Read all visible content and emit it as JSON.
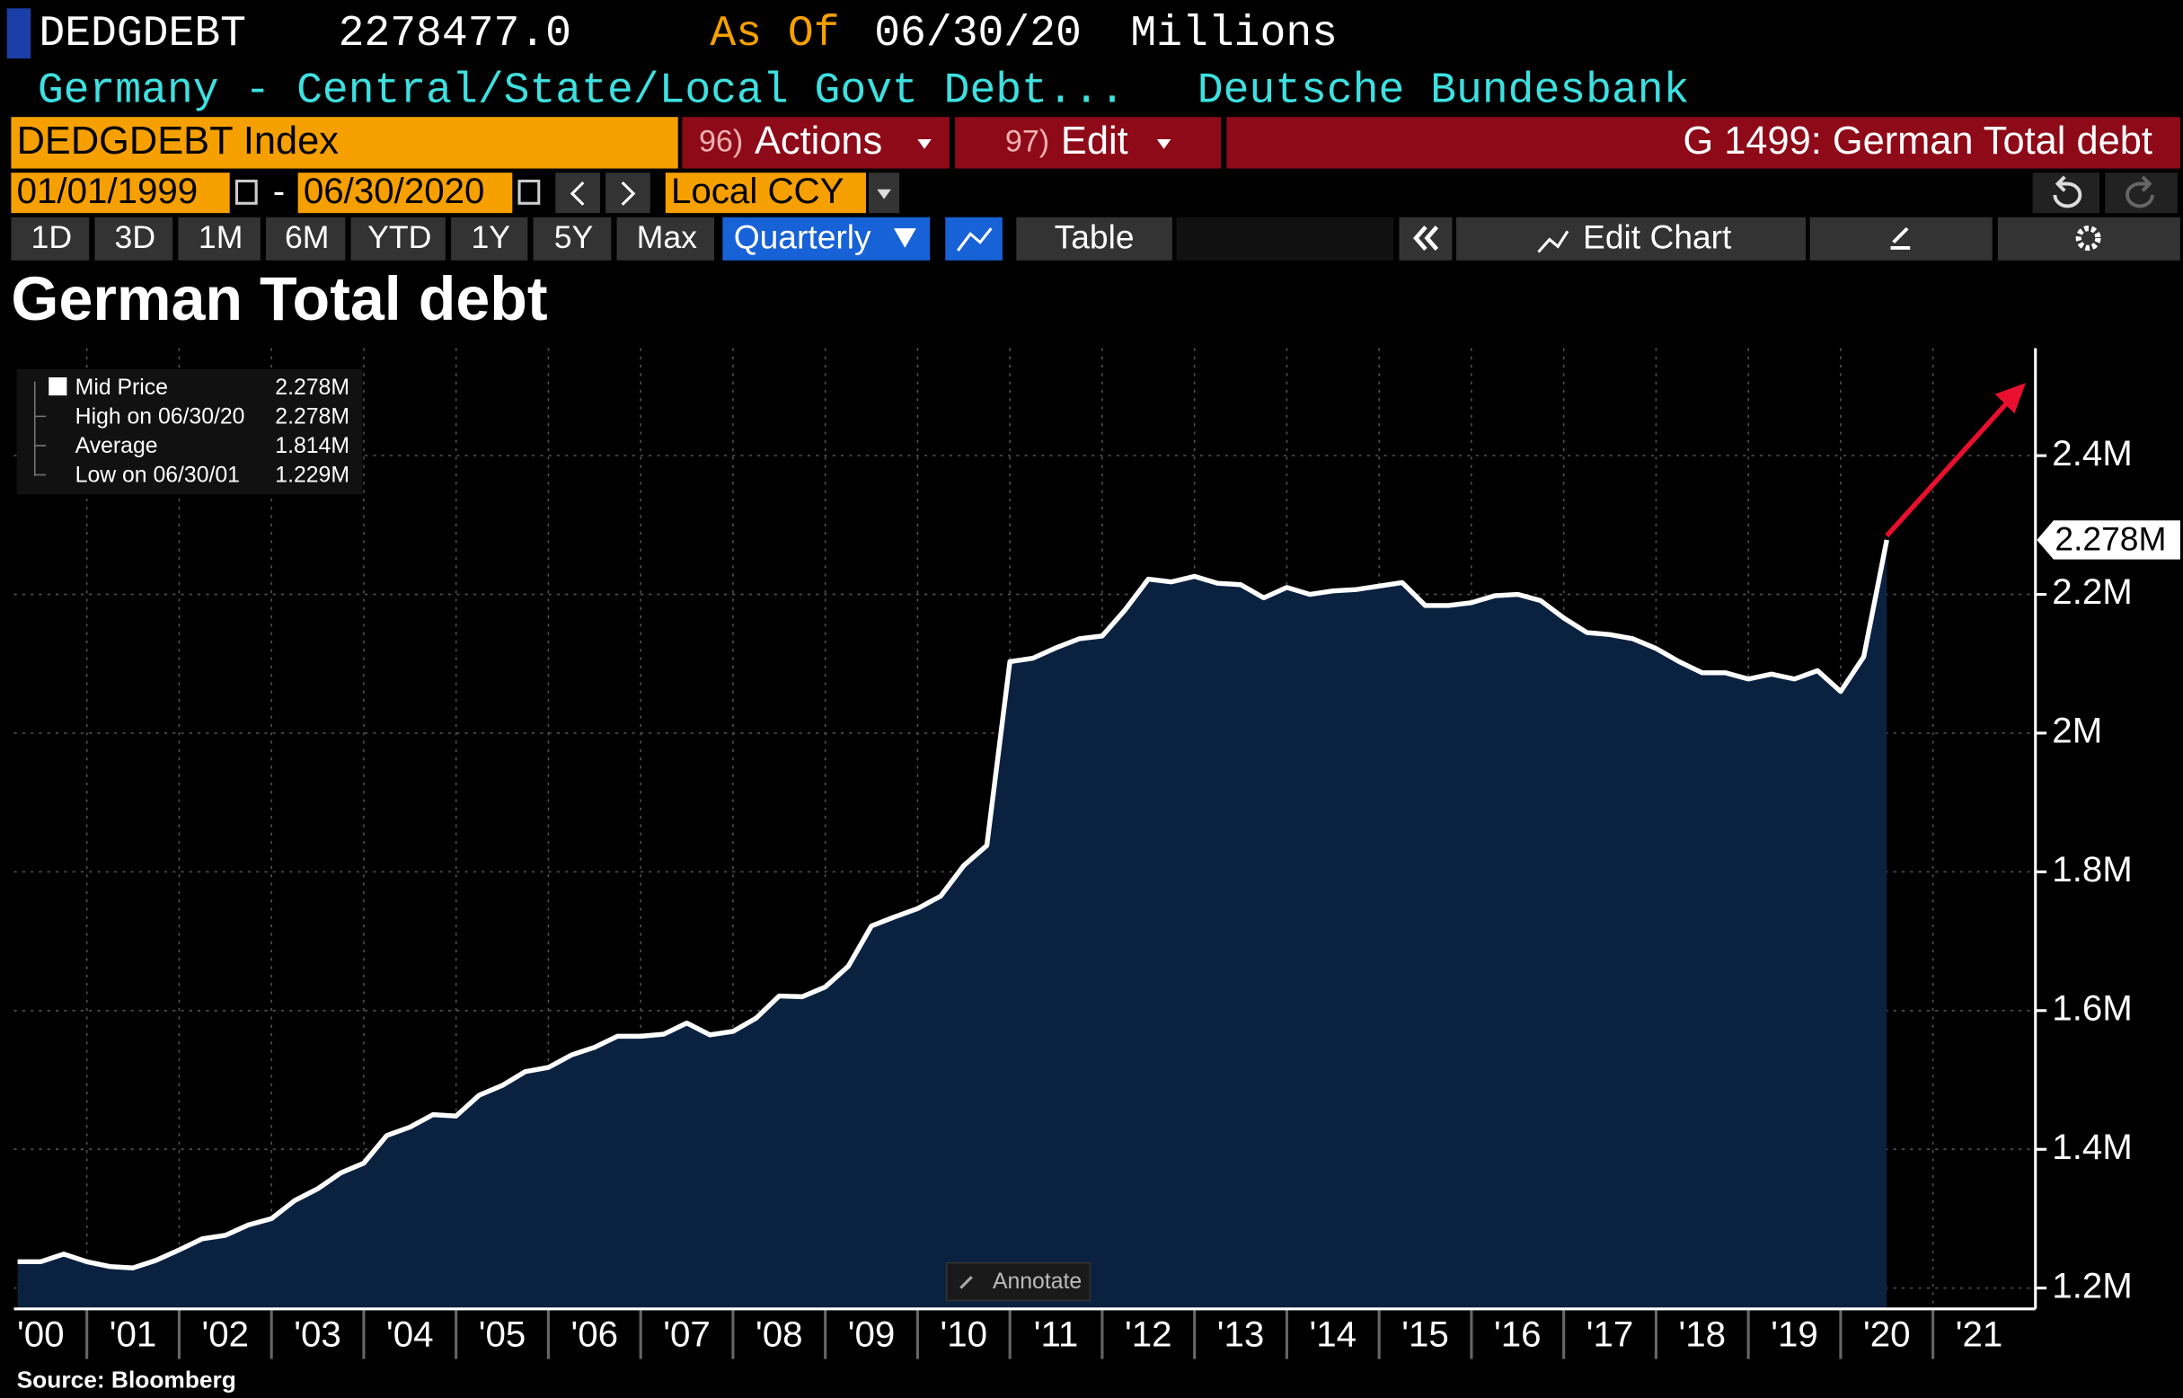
{
  "header": {
    "ticker": "DEDGDEBT",
    "last": "2278477.0",
    "as_of_label": "As Of",
    "as_of_date": "06/30/20",
    "units": "Millions",
    "description": "Germany - Central/State/Local Govt Debt...",
    "source_name": "Deutsche Bundesbank"
  },
  "toolbar": {
    "security": "DEDGDEBT Index",
    "actions_num": "96)",
    "actions": "Actions",
    "edit_num": "97)",
    "edit": "Edit",
    "page_title": "G 1499: German Total debt",
    "start_date": "01/01/1999",
    "date_sep": "-",
    "end_date": "06/30/2020",
    "currency": "Local CCY",
    "ranges": [
      "1D",
      "3D",
      "1M",
      "6M",
      "YTD",
      "1Y",
      "5Y",
      "Max"
    ],
    "period": "Quarterly",
    "table": "Table",
    "edit_chart": "Edit Chart"
  },
  "chart_data": {
    "type": "area",
    "title": "German Total debt",
    "source": "Source: Bloomberg",
    "annotate": "Annotate",
    "fill_color": "#0b2140",
    "grid": true,
    "xlim": [
      2000.21,
      2022.08
    ],
    "ylim": [
      1170000,
      2555000
    ],
    "xticks": [
      {
        "value": 2000,
        "label": "'00"
      },
      {
        "value": 2001,
        "label": "'01"
      },
      {
        "value": 2002,
        "label": "'02"
      },
      {
        "value": 2003,
        "label": "'03"
      },
      {
        "value": 2004,
        "label": "'04"
      },
      {
        "value": 2005,
        "label": "'05"
      },
      {
        "value": 2006,
        "label": "'06"
      },
      {
        "value": 2007,
        "label": "'07"
      },
      {
        "value": 2008,
        "label": "'08"
      },
      {
        "value": 2009,
        "label": "'09"
      },
      {
        "value": 2010,
        "label": "'10"
      },
      {
        "value": 2011,
        "label": "'11"
      },
      {
        "value": 2012,
        "label": "'12"
      },
      {
        "value": 2013,
        "label": "'13"
      },
      {
        "value": 2014,
        "label": "'14"
      },
      {
        "value": 2015,
        "label": "'15"
      },
      {
        "value": 2016,
        "label": "'16"
      },
      {
        "value": 2017,
        "label": "'17"
      },
      {
        "value": 2018,
        "label": "'18"
      },
      {
        "value": 2019,
        "label": "'19"
      },
      {
        "value": 2020,
        "label": "'20"
      },
      {
        "value": 2021,
        "label": "'21"
      }
    ],
    "yticks": [
      {
        "value": 1200000,
        "label": "1.2M"
      },
      {
        "value": 1400000,
        "label": "1.4M"
      },
      {
        "value": 1600000,
        "label": "1.6M"
      },
      {
        "value": 1800000,
        "label": "1.8M"
      },
      {
        "value": 2000000,
        "label": "2M"
      },
      {
        "value": 2200000,
        "label": "2.2M"
      },
      {
        "value": 2400000,
        "label": "2.4M"
      }
    ],
    "last_label": "2.278M",
    "legend_stats": [
      {
        "value": "2.278M"
      },
      {
        "label": "High on 06/30/20",
        "value": "2.278M"
      },
      {
        "label": "Average",
        "value": "1.814M"
      },
      {
        "label": "Low on 06/30/01",
        "value": "1.229M"
      }
    ],
    "x": [
      2000.25,
      2000.5,
      2000.75,
      2001,
      2001.25,
      2001.5,
      2001.75,
      2002,
      2002.25,
      2002.5,
      2002.75,
      2003,
      2003.25,
      2003.5,
      2003.75,
      2004,
      2004.25,
      2004.5,
      2004.75,
      2005,
      2005.25,
      2005.5,
      2005.75,
      2006,
      2006.25,
      2006.5,
      2006.75,
      2007,
      2007.25,
      2007.5,
      2007.75,
      2008,
      2008.25,
      2008.5,
      2008.75,
      2009,
      2009.25,
      2009.5,
      2009.75,
      2010,
      2010.25,
      2010.5,
      2010.75,
      2011,
      2011.25,
      2011.5,
      2011.75,
      2012,
      2012.25,
      2012.5,
      2012.75,
      2013,
      2013.25,
      2013.5,
      2013.75,
      2014,
      2014.25,
      2014.5,
      2014.75,
      2015,
      2015.25,
      2015.5,
      2015.75,
      2016,
      2016.25,
      2016.5,
      2016.75,
      2017,
      2017.25,
      2017.5,
      2017.75,
      2018,
      2018.25,
      2018.5,
      2018.75,
      2019,
      2019.25,
      2019.5,
      2019.75,
      2020,
      2020.25,
      2020.5
    ],
    "series": [
      {
        "name": "Mid Price",
        "color": "#ffffff",
        "values": [
          1238000,
          1238000,
          1249000,
          1238000,
          1231000,
          1229000,
          1240000,
          1255000,
          1271000,
          1276000,
          1291000,
          1300000,
          1326000,
          1343000,
          1366000,
          1380000,
          1420000,
          1432000,
          1450000,
          1448000,
          1478000,
          1492000,
          1512000,
          1518000,
          1536000,
          1547000,
          1563000,
          1563000,
          1566000,
          1582000,
          1565000,
          1570000,
          1589000,
          1621000,
          1620000,
          1634000,
          1664000,
          1722000,
          1735000,
          1747000,
          1765000,
          1809000,
          1838000,
          2103000,
          2108000,
          2123000,
          2136000,
          2140000,
          2178000,
          2222000,
          2218000,
          2226000,
          2216000,
          2214000,
          2195000,
          2210000,
          2200000,
          2205000,
          2207000,
          2212000,
          2217000,
          2184000,
          2184000,
          2188000,
          2198000,
          2200000,
          2191000,
          2166000,
          2145000,
          2142000,
          2136000,
          2122000,
          2103000,
          2087000,
          2087000,
          2078000,
          2085000,
          2078000,
          2090000,
          2060000,
          2110000,
          2278477
        ]
      }
    ]
  }
}
